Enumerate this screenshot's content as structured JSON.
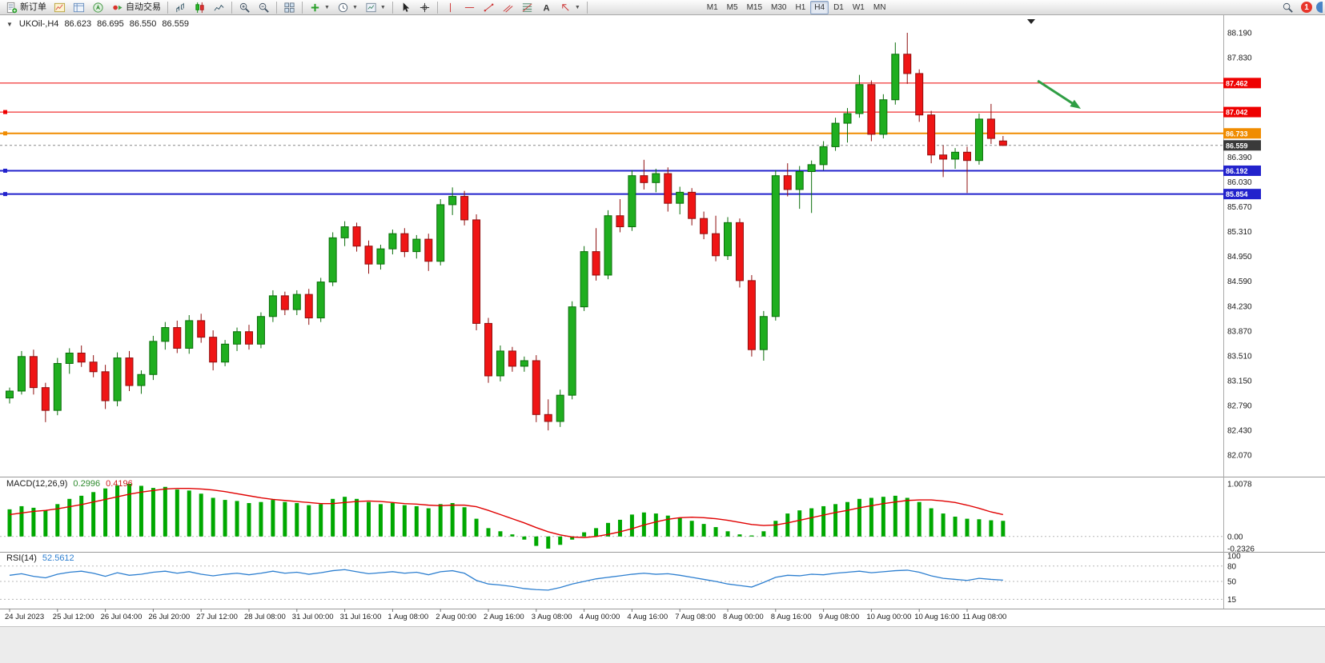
{
  "toolbar": {
    "new_order_label": "新订单",
    "auto_trading_label": "自动交易",
    "timeframes": [
      "M1",
      "M5",
      "M15",
      "M30",
      "H1",
      "H4",
      "D1",
      "W1",
      "MN"
    ],
    "active_timeframe": "H4",
    "notification_count": "1"
  },
  "main_chart": {
    "symbol": "UKOil-,H4",
    "open": "86.623",
    "high": "86.695",
    "low": "86.550",
    "close": "86.559"
  },
  "macd_header": {
    "label": "MACD(12,26,9)",
    "value_main": "0.2996",
    "value_signal": "0.4196"
  },
  "rsi_header": {
    "label": "RSI(14)",
    "value": "52.5612"
  },
  "chart_data": [
    {
      "type": "candlestick",
      "title": "UKOil- H4",
      "ohlc_display": {
        "open": 86.623,
        "high": 86.695,
        "low": 86.55,
        "close": 86.559
      },
      "ylim": [
        81.76,
        88.445
      ],
      "price_axis": {
        "tick_min": 82.07,
        "tick_step": 0.36,
        "tick_count": 18
      },
      "x_labels": [
        "24 Jul 2023",
        "25 Jul 12:00",
        "26 Jul 04:00",
        "26 Jul 20:00",
        "27 Jul 12:00",
        "28 Jul 08:00",
        "31 Jul 00:00",
        "31 Jul 16:00",
        "1 Aug 08:00",
        "2 Aug 00:00",
        "2 Aug 16:00",
        "3 Aug 08:00",
        "4 Aug 00:00",
        "4 Aug 16:00",
        "7 Aug 08:00",
        "8 Aug 00:00",
        "8 Aug 16:00",
        "9 Aug 08:00",
        "10 Aug 00:00",
        "10 Aug 16:00",
        "11 Aug 08:00"
      ],
      "bars_per_label": 4,
      "candles": [
        [
          82.9,
          83.05,
          82.82,
          83.0
        ],
        [
          83.0,
          83.58,
          82.95,
          83.5
        ],
        [
          83.5,
          83.6,
          82.95,
          83.05
        ],
        [
          83.05,
          83.12,
          82.55,
          82.72
        ],
        [
          82.72,
          83.48,
          82.65,
          83.4
        ],
        [
          83.4,
          83.62,
          83.25,
          83.55
        ],
        [
          83.55,
          83.66,
          83.35,
          83.42
        ],
        [
          83.42,
          83.52,
          83.2,
          83.28
        ],
        [
          83.28,
          83.38,
          82.74,
          82.86
        ],
        [
          82.86,
          83.56,
          82.78,
          83.48
        ],
        [
          83.48,
          83.58,
          83.0,
          83.08
        ],
        [
          83.08,
          83.3,
          82.96,
          83.24
        ],
        [
          83.24,
          83.8,
          83.16,
          83.72
        ],
        [
          83.72,
          84.0,
          83.6,
          83.92
        ],
        [
          83.92,
          84.02,
          83.55,
          83.62
        ],
        [
          83.62,
          84.1,
          83.54,
          84.02
        ],
        [
          84.02,
          84.12,
          83.7,
          83.78
        ],
        [
          83.78,
          83.88,
          83.3,
          83.42
        ],
        [
          83.42,
          83.74,
          83.36,
          83.68
        ],
        [
          83.68,
          83.92,
          83.58,
          83.86
        ],
        [
          83.86,
          83.96,
          83.6,
          83.68
        ],
        [
          83.68,
          84.14,
          83.62,
          84.08
        ],
        [
          84.08,
          84.46,
          84.0,
          84.38
        ],
        [
          84.38,
          84.44,
          84.1,
          84.18
        ],
        [
          84.18,
          84.46,
          84.1,
          84.4
        ],
        [
          84.4,
          84.48,
          83.96,
          84.06
        ],
        [
          84.06,
          84.64,
          84.0,
          84.58
        ],
        [
          84.58,
          85.3,
          84.52,
          85.22
        ],
        [
          85.22,
          85.46,
          85.1,
          85.38
        ],
        [
          85.38,
          85.44,
          85.02,
          85.1
        ],
        [
          85.1,
          85.18,
          84.7,
          84.84
        ],
        [
          84.84,
          85.12,
          84.76,
          85.06
        ],
        [
          85.06,
          85.34,
          84.98,
          85.28
        ],
        [
          85.28,
          85.36,
          84.94,
          85.02
        ],
        [
          85.02,
          85.26,
          84.92,
          85.2
        ],
        [
          85.2,
          85.28,
          84.74,
          84.88
        ],
        [
          84.88,
          85.78,
          84.82,
          85.7
        ],
        [
          85.7,
          85.95,
          85.55,
          85.82
        ],
        [
          85.82,
          85.9,
          85.4,
          85.48
        ],
        [
          85.48,
          85.56,
          83.88,
          83.98
        ],
        [
          83.98,
          84.06,
          83.12,
          83.22
        ],
        [
          83.22,
          83.66,
          83.14,
          83.58
        ],
        [
          83.58,
          83.64,
          83.28,
          83.36
        ],
        [
          83.36,
          83.5,
          83.28,
          83.44
        ],
        [
          83.44,
          83.52,
          82.55,
          82.66
        ],
        [
          82.66,
          82.88,
          82.43,
          82.56
        ],
        [
          82.56,
          83.02,
          82.48,
          82.94
        ],
        [
          82.94,
          84.3,
          82.88,
          84.22
        ],
        [
          84.22,
          85.1,
          84.16,
          85.02
        ],
        [
          85.02,
          85.36,
          84.6,
          84.68
        ],
        [
          84.68,
          85.62,
          84.62,
          85.54
        ],
        [
          85.54,
          85.78,
          85.3,
          85.38
        ],
        [
          85.38,
          86.2,
          85.32,
          86.12
        ],
        [
          86.12,
          86.35,
          85.92,
          86.02
        ],
        [
          86.02,
          86.22,
          85.88,
          86.15
        ],
        [
          86.15,
          86.24,
          85.6,
          85.72
        ],
        [
          85.72,
          85.96,
          85.56,
          85.88
        ],
        [
          85.88,
          85.94,
          85.4,
          85.5
        ],
        [
          85.5,
          85.6,
          85.2,
          85.28
        ],
        [
          85.28,
          85.54,
          84.88,
          84.96
        ],
        [
          84.96,
          85.52,
          84.9,
          85.44
        ],
        [
          85.44,
          85.5,
          84.5,
          84.6
        ],
        [
          84.6,
          84.68,
          83.5,
          83.6
        ],
        [
          83.6,
          84.16,
          83.44,
          84.08
        ],
        [
          84.08,
          86.2,
          84.02,
          86.12
        ],
        [
          86.12,
          86.3,
          85.82,
          85.92
        ],
        [
          85.92,
          86.26,
          85.64,
          86.18
        ],
        [
          86.18,
          86.34,
          85.58,
          86.28
        ],
        [
          86.28,
          86.62,
          86.2,
          86.54
        ],
        [
          86.54,
          86.96,
          86.48,
          86.88
        ],
        [
          86.88,
          87.1,
          86.6,
          87.02
        ],
        [
          87.02,
          87.58,
          86.96,
          87.44
        ],
        [
          87.44,
          87.5,
          86.62,
          86.72
        ],
        [
          86.72,
          87.3,
          86.66,
          87.22
        ],
        [
          87.22,
          88.05,
          87.15,
          87.88
        ],
        [
          87.88,
          88.19,
          87.45,
          87.6
        ],
        [
          87.6,
          87.66,
          86.9,
          87.0
        ],
        [
          87.0,
          87.06,
          86.3,
          86.42
        ],
        [
          86.42,
          86.56,
          86.1,
          86.36
        ],
        [
          86.36,
          86.52,
          86.22,
          86.46
        ],
        [
          86.46,
          86.54,
          85.87,
          86.34
        ],
        [
          86.34,
          87.02,
          86.28,
          86.94
        ],
        [
          86.94,
          87.16,
          86.58,
          86.66
        ],
        [
          86.623,
          86.695,
          86.55,
          86.559
        ]
      ],
      "horizontal_lines": [
        {
          "price": 87.462,
          "label": "87.462",
          "color": "#ee0000",
          "width": 1,
          "handles": false
        },
        {
          "price": 87.042,
          "label": "87.042",
          "color": "#ee0000",
          "width": 1,
          "handles": true
        },
        {
          "price": 86.733,
          "label": "86.733",
          "color": "#f08c00",
          "width": 2,
          "handles": true
        },
        {
          "price": 86.192,
          "label": "86.192",
          "color": "#2222cc",
          "width": 2,
          "handles": true
        },
        {
          "price": 85.854,
          "label": "85.854",
          "color": "#2222cc",
          "width": 2,
          "handles": true
        }
      ],
      "current_price": {
        "value": 86.559,
        "label": "86.559",
        "badge_color": "#3a3a3a"
      },
      "annotations": {
        "arrow": {
          "from_bar": 85.9,
          "from_price": 87.495,
          "to_bar": 89.5,
          "to_price": 87.089,
          "color": "#2f9e44"
        }
      },
      "colors": {
        "up": "#1fae1f",
        "up_border": "#0b6e0b",
        "down": "#ef1515",
        "down_border": "#8f0f0f",
        "background": "#ffffff"
      }
    },
    {
      "type": "bar",
      "name": "MACD(12,26,9)",
      "values_display": {
        "macd": "0.2996",
        "signal": "0.4196"
      },
      "ylim": [
        -0.2326,
        1.0078
      ],
      "y_ticks": [
        "1.0078",
        "0.00",
        "-0.2326"
      ],
      "histogram": [
        0.52,
        0.58,
        0.55,
        0.5,
        0.62,
        0.72,
        0.78,
        0.85,
        0.92,
        0.98,
        1.0078,
        0.97,
        0.93,
        0.95,
        0.9,
        0.88,
        0.82,
        0.74,
        0.7,
        0.68,
        0.64,
        0.66,
        0.7,
        0.66,
        0.64,
        0.6,
        0.62,
        0.72,
        0.76,
        0.72,
        0.66,
        0.62,
        0.64,
        0.6,
        0.58,
        0.54,
        0.62,
        0.64,
        0.56,
        0.34,
        0.16,
        0.1,
        0.04,
        -0.06,
        -0.18,
        -0.2326,
        -0.16,
        -0.06,
        0.08,
        0.16,
        0.26,
        0.32,
        0.42,
        0.46,
        0.44,
        0.4,
        0.36,
        0.3,
        0.24,
        0.18,
        0.1,
        0.04,
        0.02,
        0.1,
        0.3,
        0.44,
        0.5,
        0.54,
        0.58,
        0.62,
        0.66,
        0.72,
        0.74,
        0.76,
        0.78,
        0.74,
        0.66,
        0.54,
        0.44,
        0.38,
        0.34,
        0.33,
        0.31,
        0.2996
      ],
      "signal": [
        0.42,
        0.45,
        0.48,
        0.5,
        0.53,
        0.57,
        0.61,
        0.66,
        0.71,
        0.76,
        0.81,
        0.85,
        0.88,
        0.91,
        0.92,
        0.92,
        0.91,
        0.89,
        0.86,
        0.82,
        0.78,
        0.74,
        0.71,
        0.69,
        0.67,
        0.65,
        0.63,
        0.63,
        0.65,
        0.67,
        0.68,
        0.67,
        0.65,
        0.63,
        0.62,
        0.6,
        0.59,
        0.6,
        0.6,
        0.57,
        0.5,
        0.42,
        0.34,
        0.26,
        0.17,
        0.09,
        0.03,
        -0.01,
        -0.02,
        0.0,
        0.04,
        0.09,
        0.15,
        0.22,
        0.28,
        0.33,
        0.36,
        0.37,
        0.36,
        0.34,
        0.31,
        0.27,
        0.23,
        0.21,
        0.22,
        0.26,
        0.31,
        0.36,
        0.41,
        0.46,
        0.5,
        0.55,
        0.59,
        0.63,
        0.66,
        0.69,
        0.7,
        0.7,
        0.68,
        0.65,
        0.6,
        0.54,
        0.47,
        0.4196
      ],
      "colors": {
        "histogram": "#00a800",
        "signal": "#e00000"
      }
    },
    {
      "type": "line",
      "name": "RSI(14)",
      "value_display": "52.5612",
      "ylim": [
        0,
        100
      ],
      "levels": [
        80,
        50,
        15
      ],
      "y_ticks": [
        "100",
        "80",
        "50",
        "15"
      ],
      "values": [
        62,
        65,
        60,
        57,
        64,
        68,
        70,
        66,
        60,
        67,
        62,
        64,
        68,
        70,
        66,
        69,
        64,
        61,
        64,
        66,
        63,
        66,
        70,
        66,
        68,
        64,
        67,
        71,
        73,
        69,
        65,
        67,
        69,
        66,
        68,
        63,
        69,
        71,
        66,
        52,
        45,
        43,
        40,
        36,
        34,
        33,
        38,
        45,
        50,
        55,
        58,
        61,
        64,
        66,
        64,
        65,
        62,
        58,
        54,
        50,
        45,
        42,
        39,
        48,
        58,
        62,
        61,
        64,
        63,
        66,
        68,
        70,
        67,
        69,
        71,
        72,
        68,
        61,
        56,
        54,
        52,
        56,
        54,
        52.5612
      ],
      "color": "#2d7fd0"
    }
  ]
}
